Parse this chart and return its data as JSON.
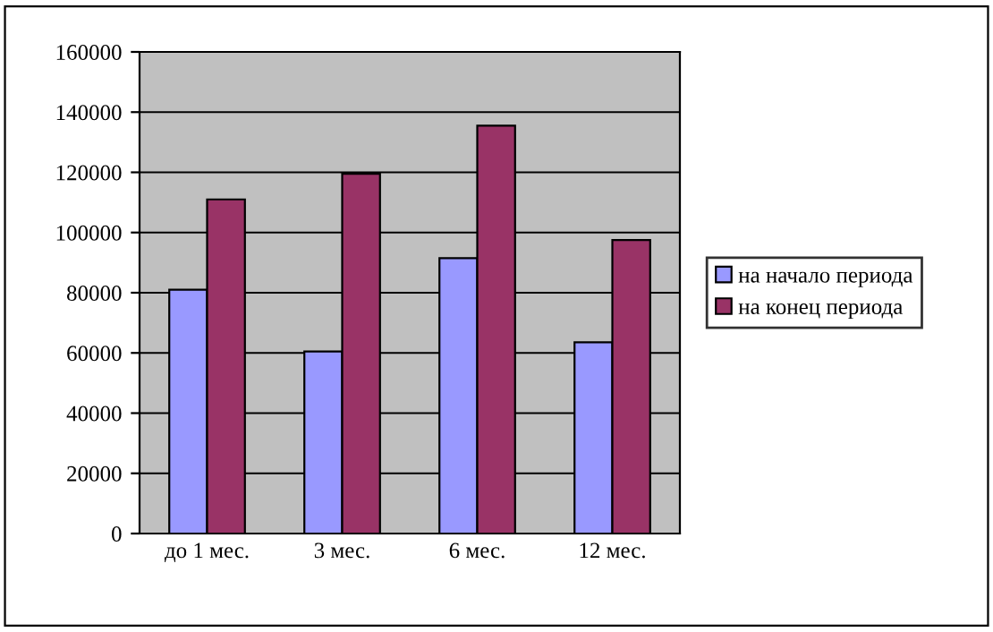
{
  "chart_data": {
    "type": "bar",
    "categories": [
      "до 1 мес.",
      "3 мес.",
      "6 мес.",
      "12 мес."
    ],
    "series": [
      {
        "name": "на начало периода",
        "color": "#9999ff",
        "values": [
          81000,
          60500,
          91500,
          63500
        ]
      },
      {
        "name": "на конец периода",
        "color": "#993366",
        "values": [
          111000,
          119500,
          135500,
          97500
        ]
      }
    ],
    "ylim": [
      0,
      160000
    ],
    "yticks": [
      0,
      20000,
      40000,
      60000,
      80000,
      100000,
      120000,
      140000,
      160000
    ],
    "grid": "y",
    "legend": "right"
  }
}
